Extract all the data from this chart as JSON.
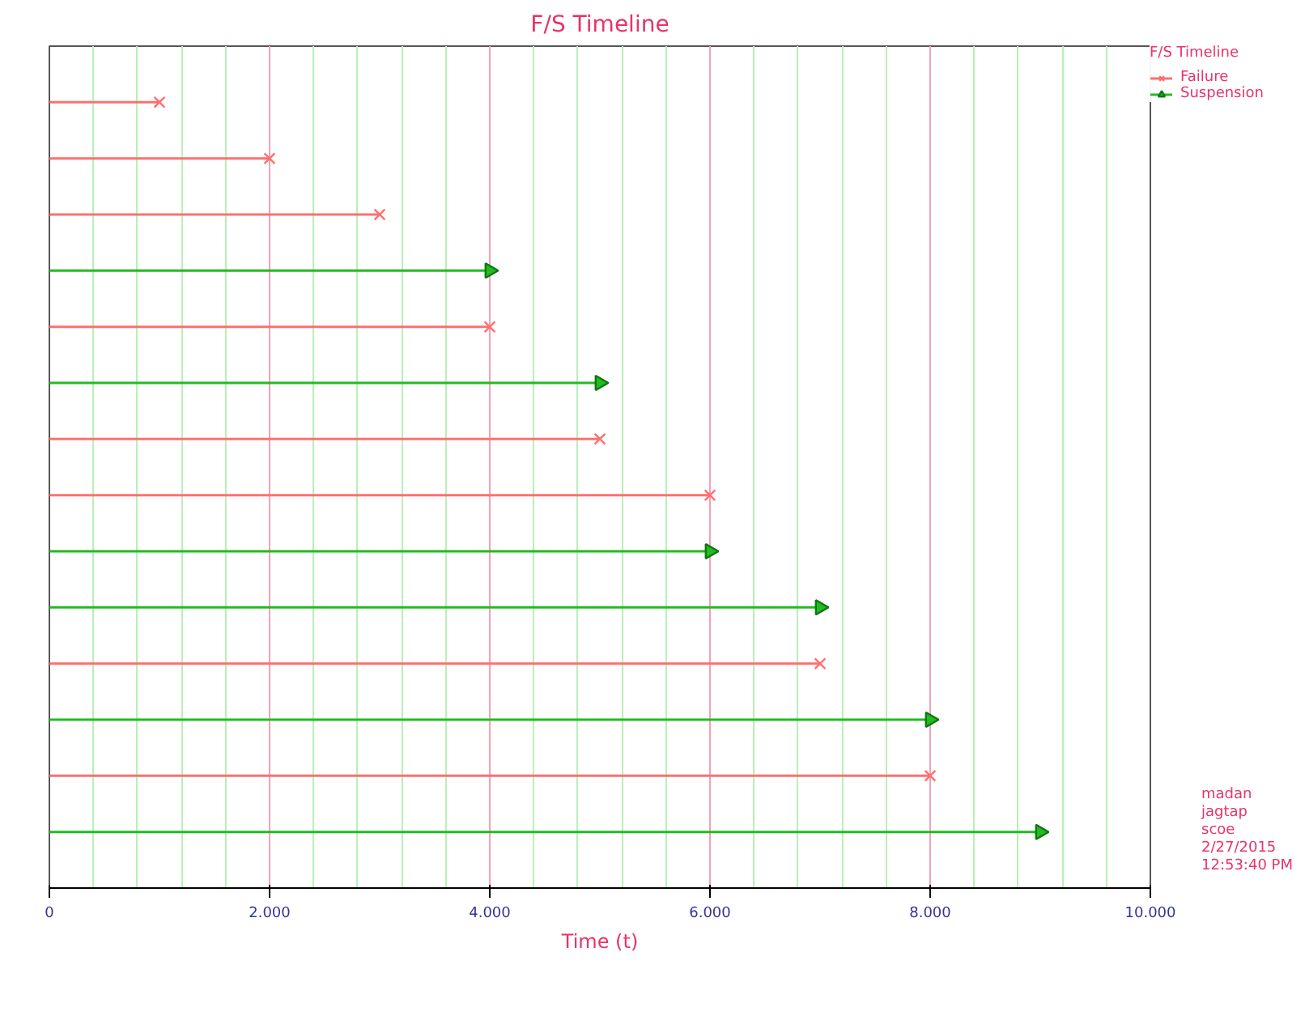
{
  "chart_data": {
    "type": "lollipop",
    "orientation": "horizontal",
    "title": "F/S Timeline",
    "xlabel": "Time (t)",
    "legend_title": "F/S Timeline",
    "categories": [
      null,
      null,
      null,
      null,
      null,
      null,
      null,
      null,
      null,
      null,
      null,
      null,
      null,
      null
    ],
    "series": [
      {
        "name": "Failure",
        "color": "#ff6f6f",
        "marker": "cross",
        "values": [
          1000,
          2000,
          3000,
          null,
          4000,
          null,
          5000,
          6000,
          null,
          null,
          7000,
          null,
          8000,
          null
        ]
      },
      {
        "name": "Suspension",
        "color": "#22bb22",
        "marker": "triangle",
        "values": [
          null,
          null,
          null,
          4000,
          null,
          5000,
          null,
          null,
          6000,
          7000,
          null,
          8000,
          null,
          9000
        ]
      }
    ],
    "xlim": [
      0,
      10000
    ],
    "xticks": [
      0,
      {
        "value": 400,
        "label": null
      },
      {
        "value": 800,
        "label": null
      },
      {
        "value": 1200,
        "label": null
      },
      {
        "value": 1600,
        "label": null
      },
      {
        "value": 2000,
        "label": "2.000"
      },
      {
        "value": 2400,
        "label": null
      },
      {
        "value": 2800,
        "label": null
      },
      {
        "value": 3200,
        "label": null
      },
      {
        "value": 3600,
        "label": null
      },
      {
        "value": 4000,
        "label": "4.000"
      },
      {
        "value": 4400,
        "label": null
      },
      {
        "value": 4800,
        "label": null
      },
      {
        "value": 5200,
        "label": null
      },
      {
        "value": 5600,
        "label": null
      },
      {
        "value": 6000,
        "label": "6.000"
      },
      {
        "value": 6400,
        "label": null
      },
      {
        "value": 6800,
        "label": null
      },
      {
        "value": 7200,
        "label": null
      },
      {
        "value": 7600,
        "label": null
      },
      {
        "value": 8000,
        "label": "8.000"
      },
      {
        "value": 8400,
        "label": null
      },
      {
        "value": 8800,
        "label": null
      },
      {
        "value": 9200,
        "label": null
      },
      {
        "value": 9600,
        "label": null
      },
      {
        "value": 10000,
        "label": "10.000"
      }
    ],
    "grid": "x",
    "legend": "top right",
    "tick_labels": "x",
    "annotations": [
      "madan jagtap\nscoe\n2/27/2015\n12:53:40 PM"
    ]
  }
}
